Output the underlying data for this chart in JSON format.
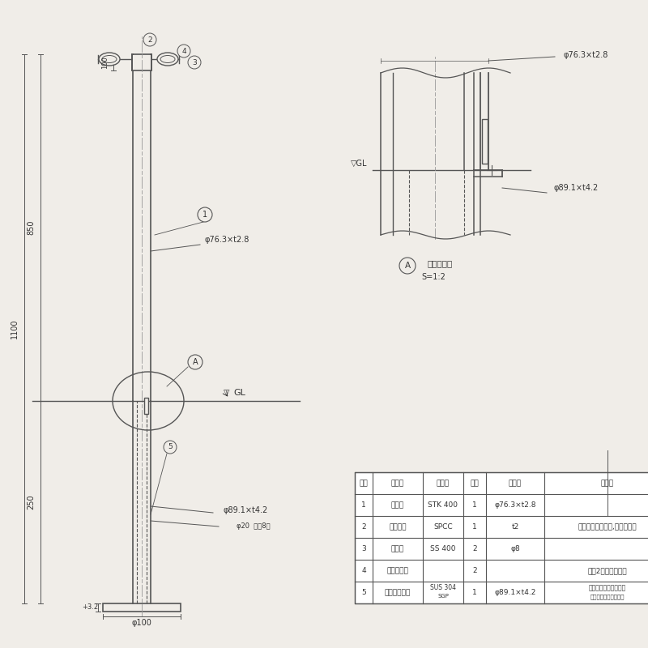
{
  "bg_color": "#f0ede8",
  "line_color": "#555555",
  "dark_color": "#333333",
  "rows_data": [
    [
      "5",
      "フタ付き竹管",
      "SUS 304\nSGP",
      "1",
      "φ89.1×t4.2",
      "フランジ　ステンレス\nケース　海塩化主鎖め"
    ],
    [
      "4",
      "住名シール",
      "",
      "2",
      "",
      "表裏2箇所貼り付け"
    ],
    [
      "3",
      "フック",
      "SS 400",
      "2",
      "φ8",
      ""
    ],
    [
      "2",
      "キャップ",
      "SPCC",
      "1",
      "t2",
      "電気亜鉛めっき後,焼付け塗装"
    ],
    [
      "1",
      "支　柱",
      "STK 400",
      "1",
      "φ76.3×t2.8",
      ""
    ],
    [
      "番号",
      "品　名",
      "材　質",
      "個数",
      "規　格",
      "備　考"
    ]
  ]
}
